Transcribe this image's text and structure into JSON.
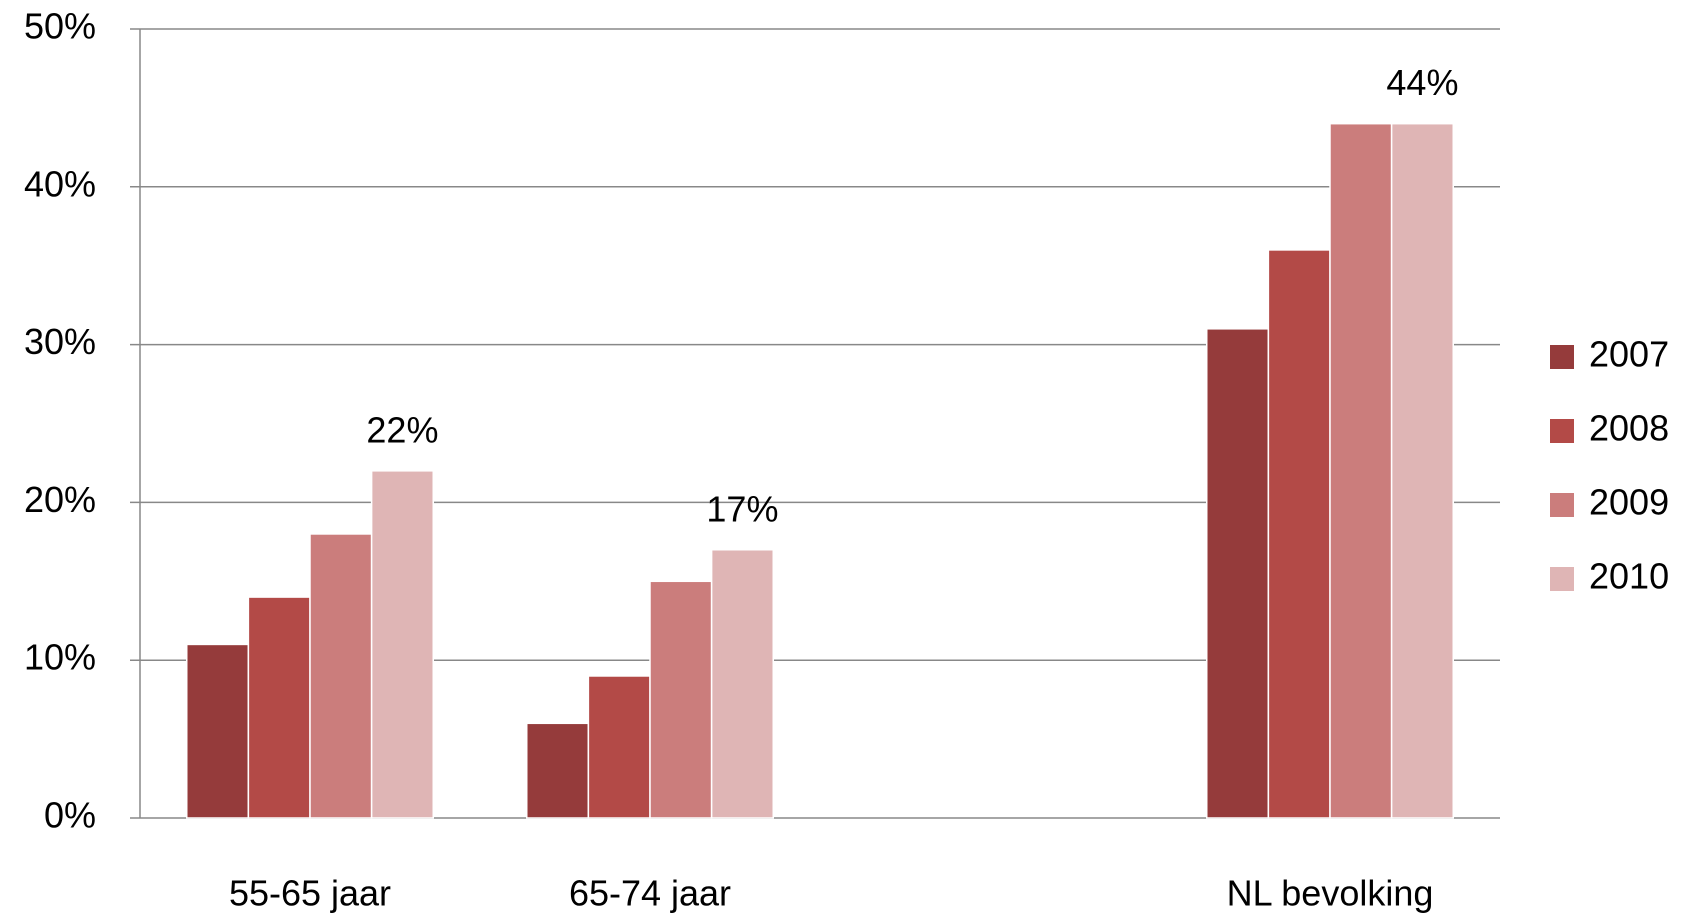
{
  "chart_data": {
    "type": "bar",
    "categories": [
      "55-65 jaar",
      "65-74 jaar",
      null,
      "NL bevolking"
    ],
    "series": [
      {
        "name": "2007",
        "color": "#953b3b",
        "values": [
          11,
          6,
          null,
          31
        ]
      },
      {
        "name": "2008",
        "color": "#b34a47",
        "values": [
          14,
          9,
          null,
          36
        ]
      },
      {
        "name": "2009",
        "color": "#cb7d7c",
        "values": [
          18,
          15,
          null,
          44
        ]
      },
      {
        "name": "2010",
        "color": "#dfb5b5",
        "values": [
          22,
          17,
          null,
          44
        ],
        "value_labels": [
          "22%",
          "17%",
          null,
          "44%"
        ]
      }
    ],
    "ylim": [
      0,
      50
    ],
    "yticks": [
      {
        "value": 0,
        "label": "0%"
      },
      {
        "value": 10,
        "label": "10%"
      },
      {
        "value": 20,
        "label": "20%"
      },
      {
        "value": 30,
        "label": "30%"
      },
      {
        "value": 40,
        "label": "40%"
      },
      {
        "value": 50,
        "label": "50%"
      }
    ],
    "grid": true,
    "legend": "right"
  }
}
